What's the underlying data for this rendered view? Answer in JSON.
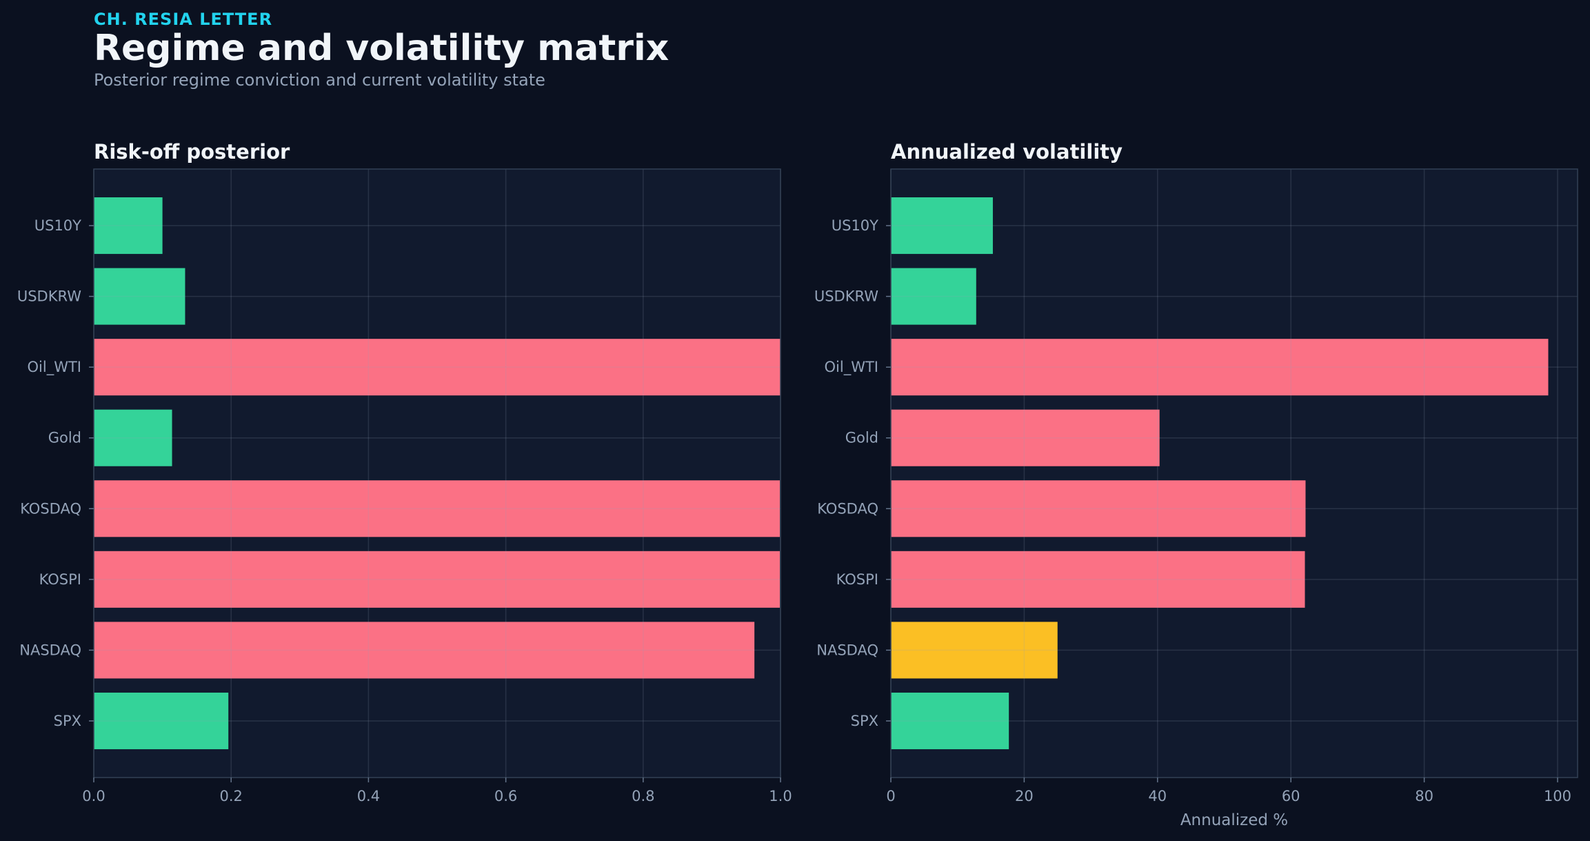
{
  "header": {
    "kicker": "CH. RESIA LETTER",
    "title": "Regime and volatility matrix",
    "subtitle": "Posterior regime conviction and current volatility state"
  },
  "colors": {
    "background": "#0b1120",
    "panel": "#111a2e",
    "calm": "#34d399",
    "stress": "#fb7185",
    "elevated": "#fbbf24",
    "accent": "#22d3ee"
  },
  "chart_data": [
    {
      "type": "bar",
      "orientation": "horizontal",
      "title": "Risk-off posterior",
      "xlabel": "",
      "ylabel": "",
      "xlim": [
        0,
        1.0
      ],
      "xticks": [
        "0.0",
        "0.2",
        "0.4",
        "0.6",
        "0.8",
        "1.0"
      ],
      "grid": true,
      "categories": [
        "US10Y",
        "USDKRW",
        "Oil_WTI",
        "Gold",
        "KOSDAQ",
        "KOSPI",
        "NASDAQ",
        "SPX"
      ],
      "values": [
        0.1,
        0.133,
        1.0,
        0.114,
        0.999,
        0.999,
        0.962,
        0.196
      ],
      "bar_colors": [
        "calm",
        "calm",
        "stress",
        "calm",
        "stress",
        "stress",
        "stress",
        "calm"
      ]
    },
    {
      "type": "bar",
      "orientation": "horizontal",
      "title": "Annualized volatility",
      "xlabel": "Annualized %",
      "ylabel": "",
      "xlim": [
        0,
        103
      ],
      "xticks": [
        "0",
        "20",
        "40",
        "60",
        "80",
        "100"
      ],
      "grid": true,
      "categories": [
        "US10Y",
        "USDKRW",
        "Oil_WTI",
        "Gold",
        "KOSDAQ",
        "KOSPI",
        "NASDAQ",
        "SPX"
      ],
      "values": [
        15.3,
        12.8,
        98.6,
        40.3,
        62.2,
        62.1,
        25.0,
        17.7
      ],
      "bar_colors": [
        "calm",
        "calm",
        "stress",
        "stress",
        "stress",
        "stress",
        "elevated",
        "calm"
      ]
    }
  ]
}
